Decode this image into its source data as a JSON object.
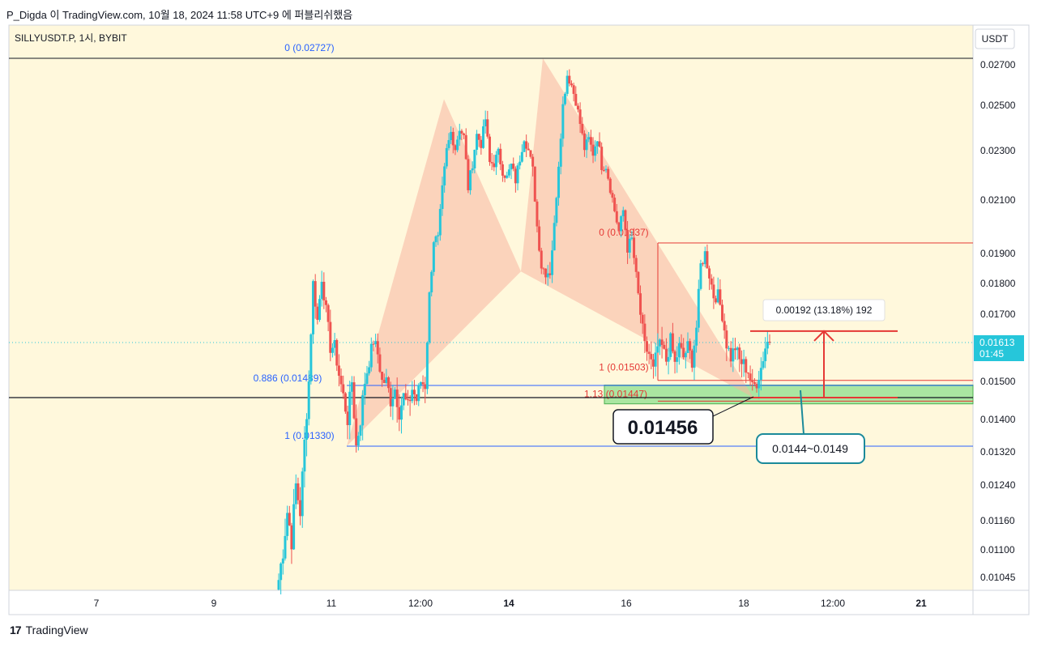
{
  "header": {
    "caption": "P_Digda 이 TradingView.com, 10월 18, 2024 11:58 UTC+9 에 퍼블리쉬했음"
  },
  "footer": {
    "brand": "TradingView",
    "logo_glyph": "17"
  },
  "colors": {
    "up": "#26c6da",
    "down": "#ef5350",
    "background": "#fff8dc",
    "pattern": "#f8b4a0",
    "zone": "#8ee08e",
    "accent": "#2196f3"
  },
  "chart_data": {
    "type": "candlestick",
    "symbol": "SILLYUSDT.P, 1시, BYBIT",
    "currency": "USDT",
    "last_price": "0.01613",
    "countdown": "01:45",
    "y_ticks": [
      "0.02700",
      "0.02500",
      "0.02300",
      "0.02100",
      "0.01900",
      "0.01800",
      "0.01700",
      "0.01500",
      "0.01400",
      "0.01320",
      "0.01240",
      "0.01160",
      "0.01100",
      "0.01045"
    ],
    "x_ticks": [
      "7",
      "9",
      "11",
      "12:00",
      "14",
      "16",
      "18",
      "12:00",
      "21"
    ],
    "x_ticks_bold": [
      false,
      false,
      false,
      false,
      true,
      false,
      false,
      false,
      true
    ],
    "price_path": [
      [
        0.0104,
        0.011,
        0.0118,
        0.0112,
        0.0124,
        0.0118,
        0.0134,
        0.015,
        0.018,
        0.0168,
        0.0182,
        0.0171,
        0.016
      ],
      [
        0.016,
        0.0152,
        0.0146,
        0.014,
        0.015,
        0.0133,
        0.014,
        0.015,
        0.0156,
        0.0162,
        0.0158,
        0.015
      ],
      [
        0.015,
        0.0145,
        0.0148,
        0.0142,
        0.0146,
        0.0143,
        0.0148,
        0.0145,
        0.015,
        0.0149,
        0.0176,
        0.0195
      ],
      [
        0.0195,
        0.0214,
        0.023,
        0.0238,
        0.0231,
        0.024,
        0.0236,
        0.0215,
        0.0225,
        0.0237,
        0.0233,
        0.0244,
        0.0225
      ],
      [
        0.0225,
        0.0229,
        0.0222,
        0.0219,
        0.0224,
        0.0218,
        0.0227,
        0.0236,
        0.023,
        0.0222,
        0.02,
        0.0186,
        0.0184
      ],
      [
        0.0184,
        0.02,
        0.0225,
        0.025,
        0.0265,
        0.026,
        0.0252,
        0.0242,
        0.0231,
        0.0235,
        0.0229,
        0.0236,
        0.0224
      ],
      [
        0.0224,
        0.0215,
        0.0206,
        0.0198,
        0.0206,
        0.0192,
        0.0195,
        0.0182,
        0.017,
        0.016,
        0.0158,
        0.0153,
        0.016
      ],
      [
        0.016,
        0.0156,
        0.0162,
        0.0155,
        0.016,
        0.0157,
        0.016,
        0.0156,
        0.0166,
        0.0186,
        0.019,
        0.0183,
        0.0176
      ],
      [
        0.0176,
        0.017,
        0.0161,
        0.0157,
        0.016,
        0.0156,
        0.0155,
        0.0153,
        0.0148,
        0.015,
        0.0154,
        0.016,
        0.0163
      ]
    ],
    "pattern_points": {
      "X": 0.0133,
      "A": 0.02727,
      "B": 0.0184,
      "C": 0.01937,
      "D": 0.01456
    },
    "levels": {
      "fib_upper": [
        {
          "label": "0 (0.02727)",
          "value": 0.02727
        },
        {
          "label": "0.886 (0.01489)",
          "value": 0.01489
        },
        {
          "label": "1 (0.01330)",
          "value": 0.0133
        }
      ],
      "fib_lower": [
        {
          "label": "0 (0.01937)",
          "value": 0.01937
        },
        {
          "label": "1 (0.01503)",
          "value": 0.01503
        },
        {
          "label": "1.13 (0.01447)",
          "value": 0.01447
        }
      ],
      "horizontal_black": 0.01456,
      "dotted_current": 0.01613
    },
    "zone": {
      "low": 0.0144,
      "high": 0.0149
    },
    "measure": {
      "from": 0.01456,
      "to": 0.01648,
      "label": "0.00192 (13.18%) 192"
    },
    "callouts": {
      "entry_price": "0.01456",
      "zone_label": "0.0144~0.0149"
    }
  }
}
